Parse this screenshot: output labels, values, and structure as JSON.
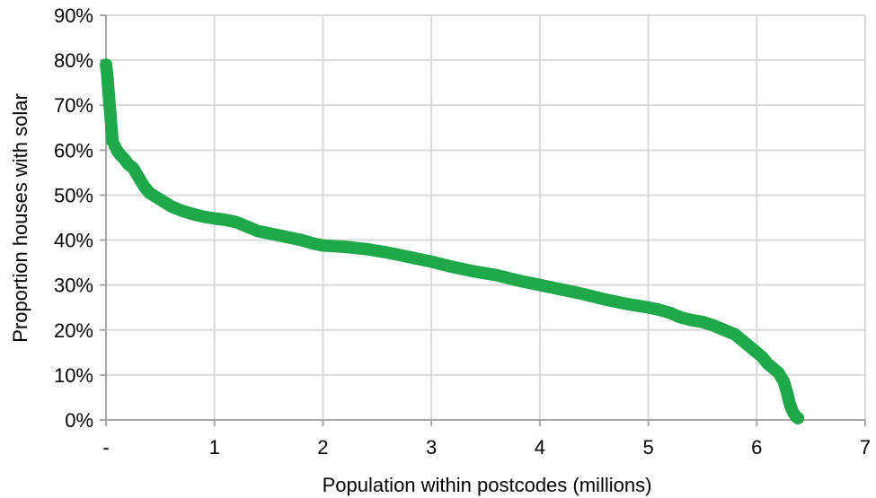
{
  "chart_data": {
    "type": "scatter",
    "title": "",
    "xlabel": "Population within postcodes (millions)",
    "ylabel": "Proportion houses with solar",
    "xlim": [
      0,
      7
    ],
    "ylim": [
      0,
      0.9
    ],
    "x_tick_labels": [
      "-",
      "1",
      "2",
      "3",
      "4",
      "5",
      "6",
      "7"
    ],
    "y_tick_labels": [
      "0%",
      "10%",
      "20%",
      "30%",
      "40%",
      "50%",
      "60%",
      "70%",
      "80%",
      "90%"
    ],
    "grid": true,
    "legend": "none",
    "marker_color": "#1ea84a",
    "grid_color": "#d9d9d9",
    "axis_color": "#a6a6a6",
    "series": [
      {
        "x": [
          0.0,
          0.01,
          0.02,
          0.03,
          0.04,
          0.05,
          0.06,
          0.08,
          0.1,
          0.13,
          0.17,
          0.2,
          0.25,
          0.3,
          0.35,
          0.4,
          0.5,
          0.6,
          0.7,
          0.8,
          0.9,
          1.0,
          1.1,
          1.2,
          1.3,
          1.4,
          1.5,
          1.6,
          1.7,
          1.8,
          1.9,
          2.0,
          2.2,
          2.4,
          2.6,
          2.8,
          3.0,
          3.2,
          3.4,
          3.6,
          3.8,
          4.0,
          4.2,
          4.4,
          4.6,
          4.8,
          5.0,
          5.1,
          5.2,
          5.3,
          5.4,
          5.5,
          5.6,
          5.7,
          5.8,
          5.9,
          6.0,
          6.05,
          6.1,
          6.15,
          6.2,
          6.25,
          6.28,
          6.3,
          6.32,
          6.34,
          6.36,
          6.38
        ],
        "y": [
          0.79,
          0.77,
          0.74,
          0.71,
          0.68,
          0.65,
          0.62,
          0.61,
          0.6,
          0.59,
          0.58,
          0.57,
          0.56,
          0.54,
          0.52,
          0.505,
          0.49,
          0.475,
          0.465,
          0.458,
          0.452,
          0.448,
          0.445,
          0.44,
          0.43,
          0.42,
          0.415,
          0.41,
          0.405,
          0.4,
          0.393,
          0.388,
          0.385,
          0.38,
          0.372,
          0.362,
          0.352,
          0.34,
          0.33,
          0.322,
          0.31,
          0.3,
          0.29,
          0.28,
          0.268,
          0.258,
          0.25,
          0.245,
          0.238,
          0.228,
          0.222,
          0.218,
          0.21,
          0.2,
          0.19,
          0.17,
          0.15,
          0.14,
          0.125,
          0.115,
          0.105,
          0.085,
          0.06,
          0.04,
          0.025,
          0.015,
          0.008,
          0.004
        ]
      }
    ]
  }
}
